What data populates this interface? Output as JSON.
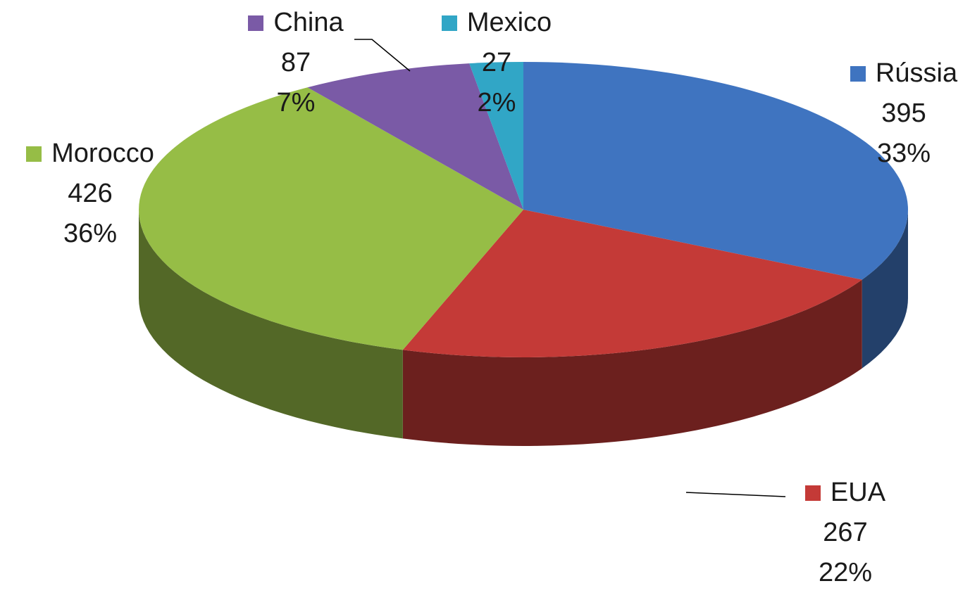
{
  "chart_data": {
    "type": "pie",
    "style": "3d",
    "slices": [
      {
        "name": "Rússia",
        "value": 395,
        "percent": "33%",
        "color": "#3f74c0"
      },
      {
        "name": "EUA",
        "value": 267,
        "percent": "22%",
        "color": "#c43a37"
      },
      {
        "name": "Morocco",
        "value": 426,
        "percent": "36%",
        "color": "#96bd46"
      },
      {
        "name": "China",
        "value": 87,
        "percent": "7%",
        "color": "#7a5aa6"
      },
      {
        "name": "Mexico",
        "value": 27,
        "percent": "2%",
        "color": "#31a6c6"
      }
    ],
    "labels": {
      "russia": {
        "name": "Rússia",
        "value": "395",
        "percent": "33%"
      },
      "eua": {
        "name": "EUA",
        "value": "267",
        "percent": "22%"
      },
      "morocco": {
        "name": "Morocco",
        "value": "426",
        "percent": "36%"
      },
      "china": {
        "name": "China",
        "value": "87",
        "percent": "7%"
      },
      "mexico": {
        "name": "Mexico",
        "value": "27",
        "percent": "2%"
      }
    }
  }
}
